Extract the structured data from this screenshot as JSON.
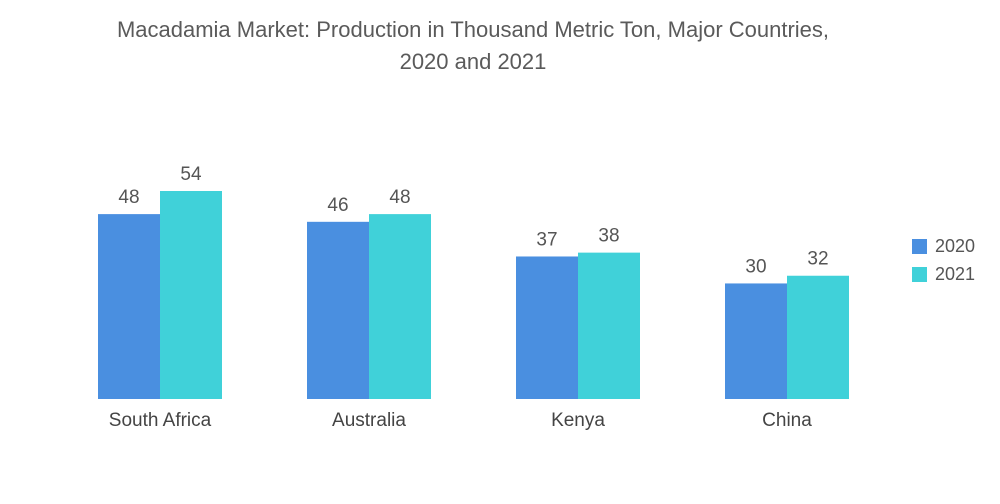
{
  "title_lines": [
    "Macadamia Market: Production in Thousand Metric Ton, Major Countries,",
    "2020 and 2021"
  ],
  "colors": {
    "2020": "#4a8fe0",
    "2021": "#40d1d9"
  },
  "chart_data": {
    "type": "bar",
    "title": "Macadamia Market: Production in Thousand Metric Ton, Major Countries, 2020 and 2021",
    "categories": [
      "South Africa",
      "Australia",
      "Kenya",
      "China"
    ],
    "series": [
      {
        "name": "2020",
        "values": [
          48,
          46,
          37,
          30
        ]
      },
      {
        "name": "2021",
        "values": [
          54,
          48,
          38,
          32
        ]
      }
    ],
    "xlabel": "",
    "ylabel": "",
    "ylim": [
      0,
      54
    ],
    "grid": false,
    "legend": "right"
  }
}
